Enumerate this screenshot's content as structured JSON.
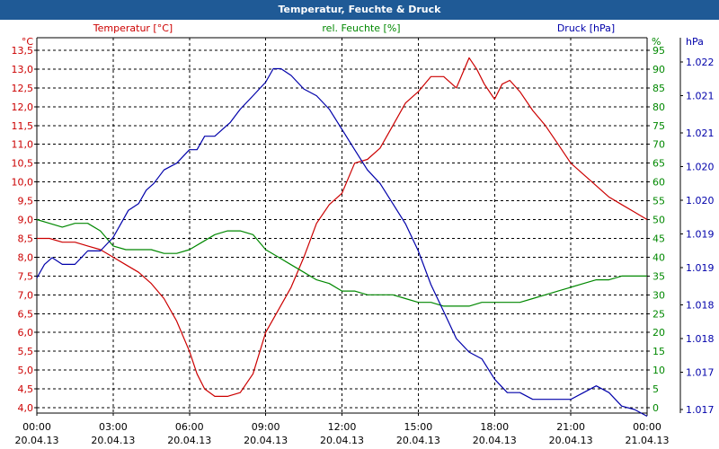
{
  "window": {
    "title": "Temperatur, Feuchte & Druck"
  },
  "colors": {
    "temperature": "#cc0000",
    "humidity": "#008800",
    "pressure": "#0000aa",
    "grid": "#000000",
    "text": "#000000",
    "titlebar": "#1f5a96"
  },
  "chart_data": {
    "type": "line",
    "title": "Temperatur, Feuchte & Druck",
    "x_unit": "hours since 20.04.13 00:00",
    "x_range": [
      0,
      24
    ],
    "x_ticks": [
      {
        "time": "00:00",
        "date": "20.04.13"
      },
      {
        "time": "03:00",
        "date": "20.04.13"
      },
      {
        "time": "06:00",
        "date": "20.04.13"
      },
      {
        "time": "09:00",
        "date": "20.04.13"
      },
      {
        "time": "12:00",
        "date": "20.04.13"
      },
      {
        "time": "15:00",
        "date": "20.04.13"
      },
      {
        "time": "18:00",
        "date": "20.04.13"
      },
      {
        "time": "21:00",
        "date": "20.04.13"
      },
      {
        "time": "00:00",
        "date": "21.04.13"
      }
    ],
    "axes": {
      "left": {
        "label": "Temperatur [°C]",
        "unit_label": "°C",
        "range": [
          4.0,
          13.5
        ],
        "tick_labels": [
          "4,0",
          "4,5",
          "5,0",
          "5,5",
          "6,0",
          "6,5",
          "7,0",
          "7,5",
          "8,0",
          "8,5",
          "9,0",
          "9,5",
          "10,0",
          "10,5",
          "11,0",
          "11,5",
          "12,0",
          "12,5",
          "13,0",
          "13,5"
        ]
      },
      "mid": {
        "label": "rel. Feuchte [%]",
        "unit_label": "%",
        "range": [
          0,
          97.5
        ],
        "tick_labels": [
          "0",
          "5",
          "10",
          "15",
          "20",
          "25",
          "30",
          "35",
          "40",
          "45",
          "50",
          "55",
          "60",
          "65",
          "70",
          "75",
          "80",
          "85",
          "90",
          "95"
        ]
      },
      "right": {
        "label": "Druck [hPa]",
        "unit_label": "hPa",
        "range": [
          1016.75,
          1022.2
        ],
        "tick_labels": [
          "1.017",
          "1.017",
          "1.018",
          "1.018",
          "1.019",
          "1.019",
          "1.020",
          "1.020",
          "1.021",
          "1.021",
          "1.022"
        ],
        "tick_values": [
          1016.95,
          1017.5,
          1018.0,
          1018.5,
          1019.05,
          1019.55,
          1020.05,
          1020.55,
          1021.05,
          1021.6,
          1022.1
        ]
      }
    },
    "series": [
      {
        "name": "Temperatur [°C]",
        "axis": "left",
        "x": [
          0,
          0.5,
          1,
          1.5,
          2,
          2.5,
          3,
          3.5,
          4,
          4.5,
          5,
          5.5,
          6,
          6.3,
          6.6,
          7,
          7.5,
          8,
          8.5,
          9,
          9.5,
          10,
          10.5,
          11,
          11.5,
          12,
          12.5,
          13,
          13.5,
          14,
          14.5,
          15,
          15.5,
          16,
          16.5,
          17,
          17.3,
          17.6,
          18,
          18.3,
          18.6,
          19,
          19.5,
          20,
          20.5,
          21,
          21.5,
          22,
          22.5,
          23,
          23.5,
          24
        ],
        "values": [
          8.5,
          8.5,
          8.4,
          8.4,
          8.3,
          8.2,
          8.0,
          7.8,
          7.6,
          7.3,
          6.9,
          6.3,
          5.5,
          4.9,
          4.5,
          4.3,
          4.3,
          4.4,
          4.9,
          6.0,
          6.6,
          7.2,
          8.0,
          8.9,
          9.4,
          9.7,
          10.5,
          10.6,
          10.9,
          11.5,
          12.1,
          12.4,
          12.8,
          12.8,
          12.5,
          13.3,
          13.0,
          12.6,
          12.2,
          12.6,
          12.7,
          12.4,
          11.9,
          11.5,
          11.0,
          10.5,
          10.2,
          9.9,
          9.6,
          9.4,
          9.2,
          9.0
        ]
      },
      {
        "name": "rel. Feuchte [%]",
        "axis": "mid",
        "x": [
          0,
          0.5,
          1,
          1.5,
          2,
          2.5,
          3,
          3.5,
          4,
          4.5,
          5,
          5.5,
          6,
          6.5,
          7,
          7.5,
          8,
          8.5,
          9,
          9.5,
          10,
          10.5,
          11,
          11.5,
          12,
          12.5,
          13,
          13.5,
          14,
          14.5,
          15,
          15.5,
          16,
          16.5,
          17,
          17.5,
          18,
          18.5,
          19,
          19.5,
          20,
          20.5,
          21,
          21.5,
          22,
          22.5,
          23,
          23.5,
          24
        ],
        "values": [
          50,
          49,
          48,
          49,
          49,
          47,
          43,
          42,
          42,
          42,
          41,
          41,
          42,
          44,
          46,
          47,
          47,
          46,
          42,
          40,
          38,
          36,
          34,
          33,
          31,
          31,
          30,
          30,
          30,
          29,
          28,
          28,
          27,
          27,
          27,
          28,
          28,
          28,
          28,
          29,
          30,
          31,
          32,
          33,
          34,
          34,
          35,
          35,
          35
        ]
      },
      {
        "name": "Druck [hPa]",
        "axis": "right",
        "x": [
          0,
          0.3,
          0.6,
          1,
          1.5,
          2,
          2.5,
          3,
          3.3,
          3.6,
          4,
          4.3,
          4.6,
          5,
          5.5,
          6,
          6.3,
          6.6,
          7,
          7.3,
          7.6,
          8,
          8.5,
          9,
          9.3,
          9.6,
          10,
          10.5,
          11,
          11.5,
          12,
          12.5,
          13,
          13.5,
          14,
          14.5,
          15,
          15.5,
          16,
          16.5,
          17,
          17.5,
          18,
          18.5,
          19,
          19.5,
          20,
          20.5,
          21,
          21.5,
          22,
          22.5,
          23,
          23.5,
          24
        ],
        "values": [
          1018.9,
          1019.1,
          1019.2,
          1019.1,
          1019.1,
          1019.3,
          1019.3,
          1019.5,
          1019.7,
          1019.9,
          1020.0,
          1020.2,
          1020.3,
          1020.5,
          1020.6,
          1020.8,
          1020.8,
          1021.0,
          1021.0,
          1021.1,
          1021.2,
          1021.4,
          1021.6,
          1021.8,
          1022.0,
          1022.0,
          1021.9,
          1021.7,
          1021.6,
          1021.4,
          1021.1,
          1020.8,
          1020.5,
          1020.3,
          1020.0,
          1019.7,
          1019.3,
          1018.8,
          1018.4,
          1018.0,
          1017.8,
          1017.7,
          1017.4,
          1017.2,
          1017.2,
          1017.1,
          1017.1,
          1017.1,
          1017.1,
          1017.2,
          1017.3,
          1017.2,
          1017.0,
          1016.95,
          1016.85
        ]
      }
    ]
  }
}
